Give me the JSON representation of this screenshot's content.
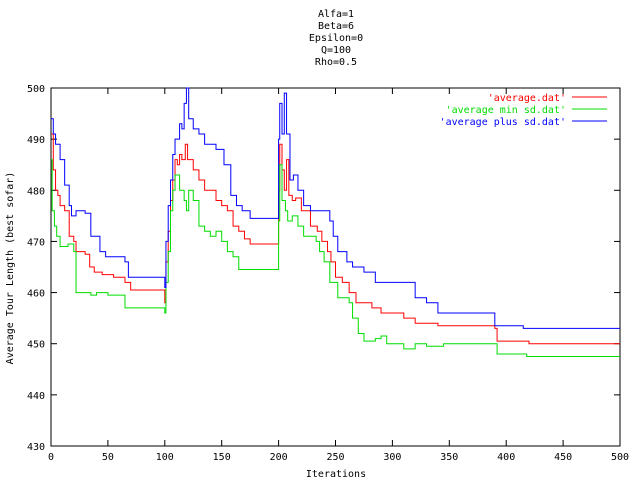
{
  "chart_data": {
    "type": "line",
    "title_lines": [
      "Alfa=1",
      "Beta=6",
      "Epsilon=0",
      "Q=100",
      "Rho=0.5"
    ],
    "xlabel": "Iterations",
    "ylabel": "Average Tour Length (best sofar)",
    "xlim": [
      0,
      500
    ],
    "ylim": [
      430,
      500
    ],
    "x_ticks": [
      0,
      50,
      100,
      150,
      200,
      250,
      300,
      350,
      400,
      450,
      500
    ],
    "y_ticks": [
      430,
      440,
      450,
      460,
      470,
      480,
      490,
      500
    ],
    "grid": false,
    "legend_position": "top-right",
    "series": [
      {
        "name": "'average.dat'",
        "color": "#ff0000",
        "points": [
          [
            0,
            491
          ],
          [
            2,
            484
          ],
          [
            4,
            480
          ],
          [
            6,
            479
          ],
          [
            8,
            477
          ],
          [
            12,
            476
          ],
          [
            16,
            471
          ],
          [
            20,
            470
          ],
          [
            22,
            468
          ],
          [
            30,
            467.5
          ],
          [
            34,
            465
          ],
          [
            38,
            464
          ],
          [
            45,
            463.5
          ],
          [
            55,
            463
          ],
          [
            65,
            462
          ],
          [
            70,
            460.5
          ],
          [
            99,
            460.5
          ],
          [
            100,
            458
          ],
          [
            101,
            466
          ],
          [
            103,
            472
          ],
          [
            105,
            478
          ],
          [
            107,
            482
          ],
          [
            109,
            486
          ],
          [
            111,
            485
          ],
          [
            113,
            487
          ],
          [
            115,
            486
          ],
          [
            118,
            489
          ],
          [
            120,
            486
          ],
          [
            125,
            484
          ],
          [
            130,
            482
          ],
          [
            135,
            480
          ],
          [
            145,
            478
          ],
          [
            150,
            477
          ],
          [
            155,
            476
          ],
          [
            160,
            473
          ],
          [
            165,
            472
          ],
          [
            170,
            470.5
          ],
          [
            175,
            469.5
          ],
          [
            199,
            469.5
          ],
          [
            200,
            480
          ],
          [
            201,
            489
          ],
          [
            203,
            484
          ],
          [
            205,
            480
          ],
          [
            207,
            486
          ],
          [
            209,
            479
          ],
          [
            212,
            478
          ],
          [
            215,
            478.5
          ],
          [
            220,
            476
          ],
          [
            228,
            473
          ],
          [
            234,
            472
          ],
          [
            238,
            470
          ],
          [
            243,
            468
          ],
          [
            246,
            466
          ],
          [
            250,
            463
          ],
          [
            256,
            462
          ],
          [
            262,
            460
          ],
          [
            268,
            458
          ],
          [
            282,
            457
          ],
          [
            290,
            456
          ],
          [
            310,
            455
          ],
          [
            320,
            454
          ],
          [
            340,
            453.5
          ],
          [
            390,
            453
          ],
          [
            392,
            450.5
          ],
          [
            420,
            450
          ],
          [
            500,
            450
          ]
        ]
      },
      {
        "name": "'average min sd.dat'",
        "color": "#00dd00",
        "points": [
          [
            0,
            486
          ],
          [
            1,
            476
          ],
          [
            3,
            473
          ],
          [
            5,
            471
          ],
          [
            8,
            469
          ],
          [
            15,
            469.5
          ],
          [
            20,
            468
          ],
          [
            22,
            460
          ],
          [
            35,
            459.5
          ],
          [
            40,
            460
          ],
          [
            50,
            459.5
          ],
          [
            62,
            459.5
          ],
          [
            65,
            457
          ],
          [
            99,
            457
          ],
          [
            100,
            456
          ],
          [
            101,
            462
          ],
          [
            103,
            468
          ],
          [
            105,
            476
          ],
          [
            107,
            480
          ],
          [
            109,
            483
          ],
          [
            113,
            480
          ],
          [
            117,
            478
          ],
          [
            119,
            476
          ],
          [
            121,
            480
          ],
          [
            125,
            478
          ],
          [
            130,
            473
          ],
          [
            135,
            472
          ],
          [
            140,
            471
          ],
          [
            145,
            472
          ],
          [
            150,
            470
          ],
          [
            155,
            468
          ],
          [
            160,
            467
          ],
          [
            165,
            464.5
          ],
          [
            199,
            464.5
          ],
          [
            200,
            474
          ],
          [
            201,
            485
          ],
          [
            203,
            478
          ],
          [
            206,
            476
          ],
          [
            208,
            474
          ],
          [
            212,
            475
          ],
          [
            217,
            473
          ],
          [
            222,
            471
          ],
          [
            233,
            470
          ],
          [
            236,
            468
          ],
          [
            240,
            466
          ],
          [
            245,
            462
          ],
          [
            252,
            459
          ],
          [
            262,
            458
          ],
          [
            265,
            455
          ],
          [
            270,
            452
          ],
          [
            275,
            450.5
          ],
          [
            285,
            451
          ],
          [
            290,
            451.5
          ],
          [
            295,
            450
          ],
          [
            305,
            450
          ],
          [
            310,
            449
          ],
          [
            320,
            450
          ],
          [
            330,
            449.5
          ],
          [
            345,
            450
          ],
          [
            390,
            450
          ],
          [
            392,
            448
          ],
          [
            418,
            447.5
          ],
          [
            500,
            447.5
          ]
        ]
      },
      {
        "name": "'average plus sd.dat'",
        "color": "#0000ff",
        "points": [
          [
            0,
            494
          ],
          [
            2,
            491
          ],
          [
            4,
            489
          ],
          [
            8,
            486
          ],
          [
            12,
            481
          ],
          [
            16,
            477
          ],
          [
            18,
            475
          ],
          [
            22,
            476
          ],
          [
            30,
            475.5
          ],
          [
            35,
            471
          ],
          [
            43,
            468
          ],
          [
            48,
            467
          ],
          [
            65,
            466
          ],
          [
            68,
            463
          ],
          [
            99,
            463
          ],
          [
            100,
            461
          ],
          [
            101,
            470
          ],
          [
            103,
            477
          ],
          [
            105,
            482
          ],
          [
            107,
            487
          ],
          [
            109,
            490
          ],
          [
            111,
            490
          ],
          [
            113,
            493
          ],
          [
            115,
            492
          ],
          [
            117,
            497
          ],
          [
            119,
            500
          ],
          [
            121,
            494
          ],
          [
            125,
            492
          ],
          [
            130,
            491
          ],
          [
            135,
            489
          ],
          [
            145,
            488
          ],
          [
            152,
            485
          ],
          [
            158,
            479
          ],
          [
            163,
            477
          ],
          [
            168,
            476
          ],
          [
            175,
            474.5
          ],
          [
            199,
            474.5
          ],
          [
            200,
            490
          ],
          [
            201,
            497
          ],
          [
            203,
            491
          ],
          [
            205,
            499
          ],
          [
            207,
            491
          ],
          [
            210,
            482
          ],
          [
            213,
            483
          ],
          [
            217,
            480
          ],
          [
            222,
            477
          ],
          [
            228,
            476
          ],
          [
            240,
            476
          ],
          [
            245,
            474
          ],
          [
            248,
            471
          ],
          [
            252,
            468
          ],
          [
            260,
            466
          ],
          [
            265,
            465
          ],
          [
            275,
            464
          ],
          [
            285,
            462
          ],
          [
            315,
            462
          ],
          [
            320,
            459
          ],
          [
            330,
            458
          ],
          [
            340,
            456
          ],
          [
            380,
            456
          ],
          [
            388,
            456
          ],
          [
            390,
            453.5
          ],
          [
            415,
            453
          ],
          [
            500,
            453
          ]
        ]
      }
    ]
  }
}
